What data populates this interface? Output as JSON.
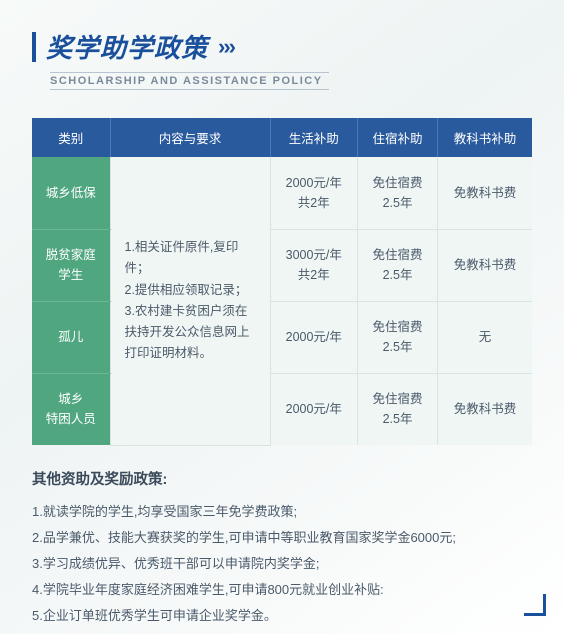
{
  "header": {
    "title_cn": "奖学助学政策",
    "chevrons": "›››",
    "title_en": "SCHOLARSHIP AND ASSISTANCE POLICY"
  },
  "table": {
    "headers": [
      "类别",
      "内容与要求",
      "生活补助",
      "住宿补助",
      "教科书补助"
    ],
    "requirements": "1.相关证件原件,复印件；\n2.提供相应领取记录；\n3.农村建卡贫困户须在扶持开发公众信息网上打印证明材料。",
    "rows": [
      {
        "cat": "城乡低保",
        "sub1": "2000元/年\n共2年",
        "sub2": "免住宿费\n2.5年",
        "sub3": "免教科书费"
      },
      {
        "cat": "脱贫家庭\n学生",
        "sub1": "3000元/年\n共2年",
        "sub2": "免住宿费\n2.5年",
        "sub3": "免教科书费"
      },
      {
        "cat": "孤儿",
        "sub1": "2000元/年",
        "sub2": "免住宿费\n2.5年",
        "sub3": "无"
      },
      {
        "cat": "城乡\n特困人员",
        "sub1": "2000元/年",
        "sub2": "免住宿费\n2.5年",
        "sub3": "免教科书费"
      }
    ]
  },
  "other": {
    "title": "其他资助及奖励政策:",
    "items": [
      "1.就读学院的学生,均享受国家三年免学费政策;",
      "2.品学兼优、技能大赛获奖的学生,可申请中等职业教育国家奖学金6000元;",
      "3.学习成绩优异、优秀班干部可以申请院内奖学金;",
      "4.学院毕业年度家庭经济困难学生,可申请800元就业创业补贴:",
      "5.企业订单班优秀学生可申请企业奖学金。"
    ]
  },
  "colors": {
    "primary": "#1a4f9c",
    "th_bg": "#2a5a9e",
    "cat_bg": "#4fa67f",
    "cell_bg": "#f0f6f4"
  }
}
